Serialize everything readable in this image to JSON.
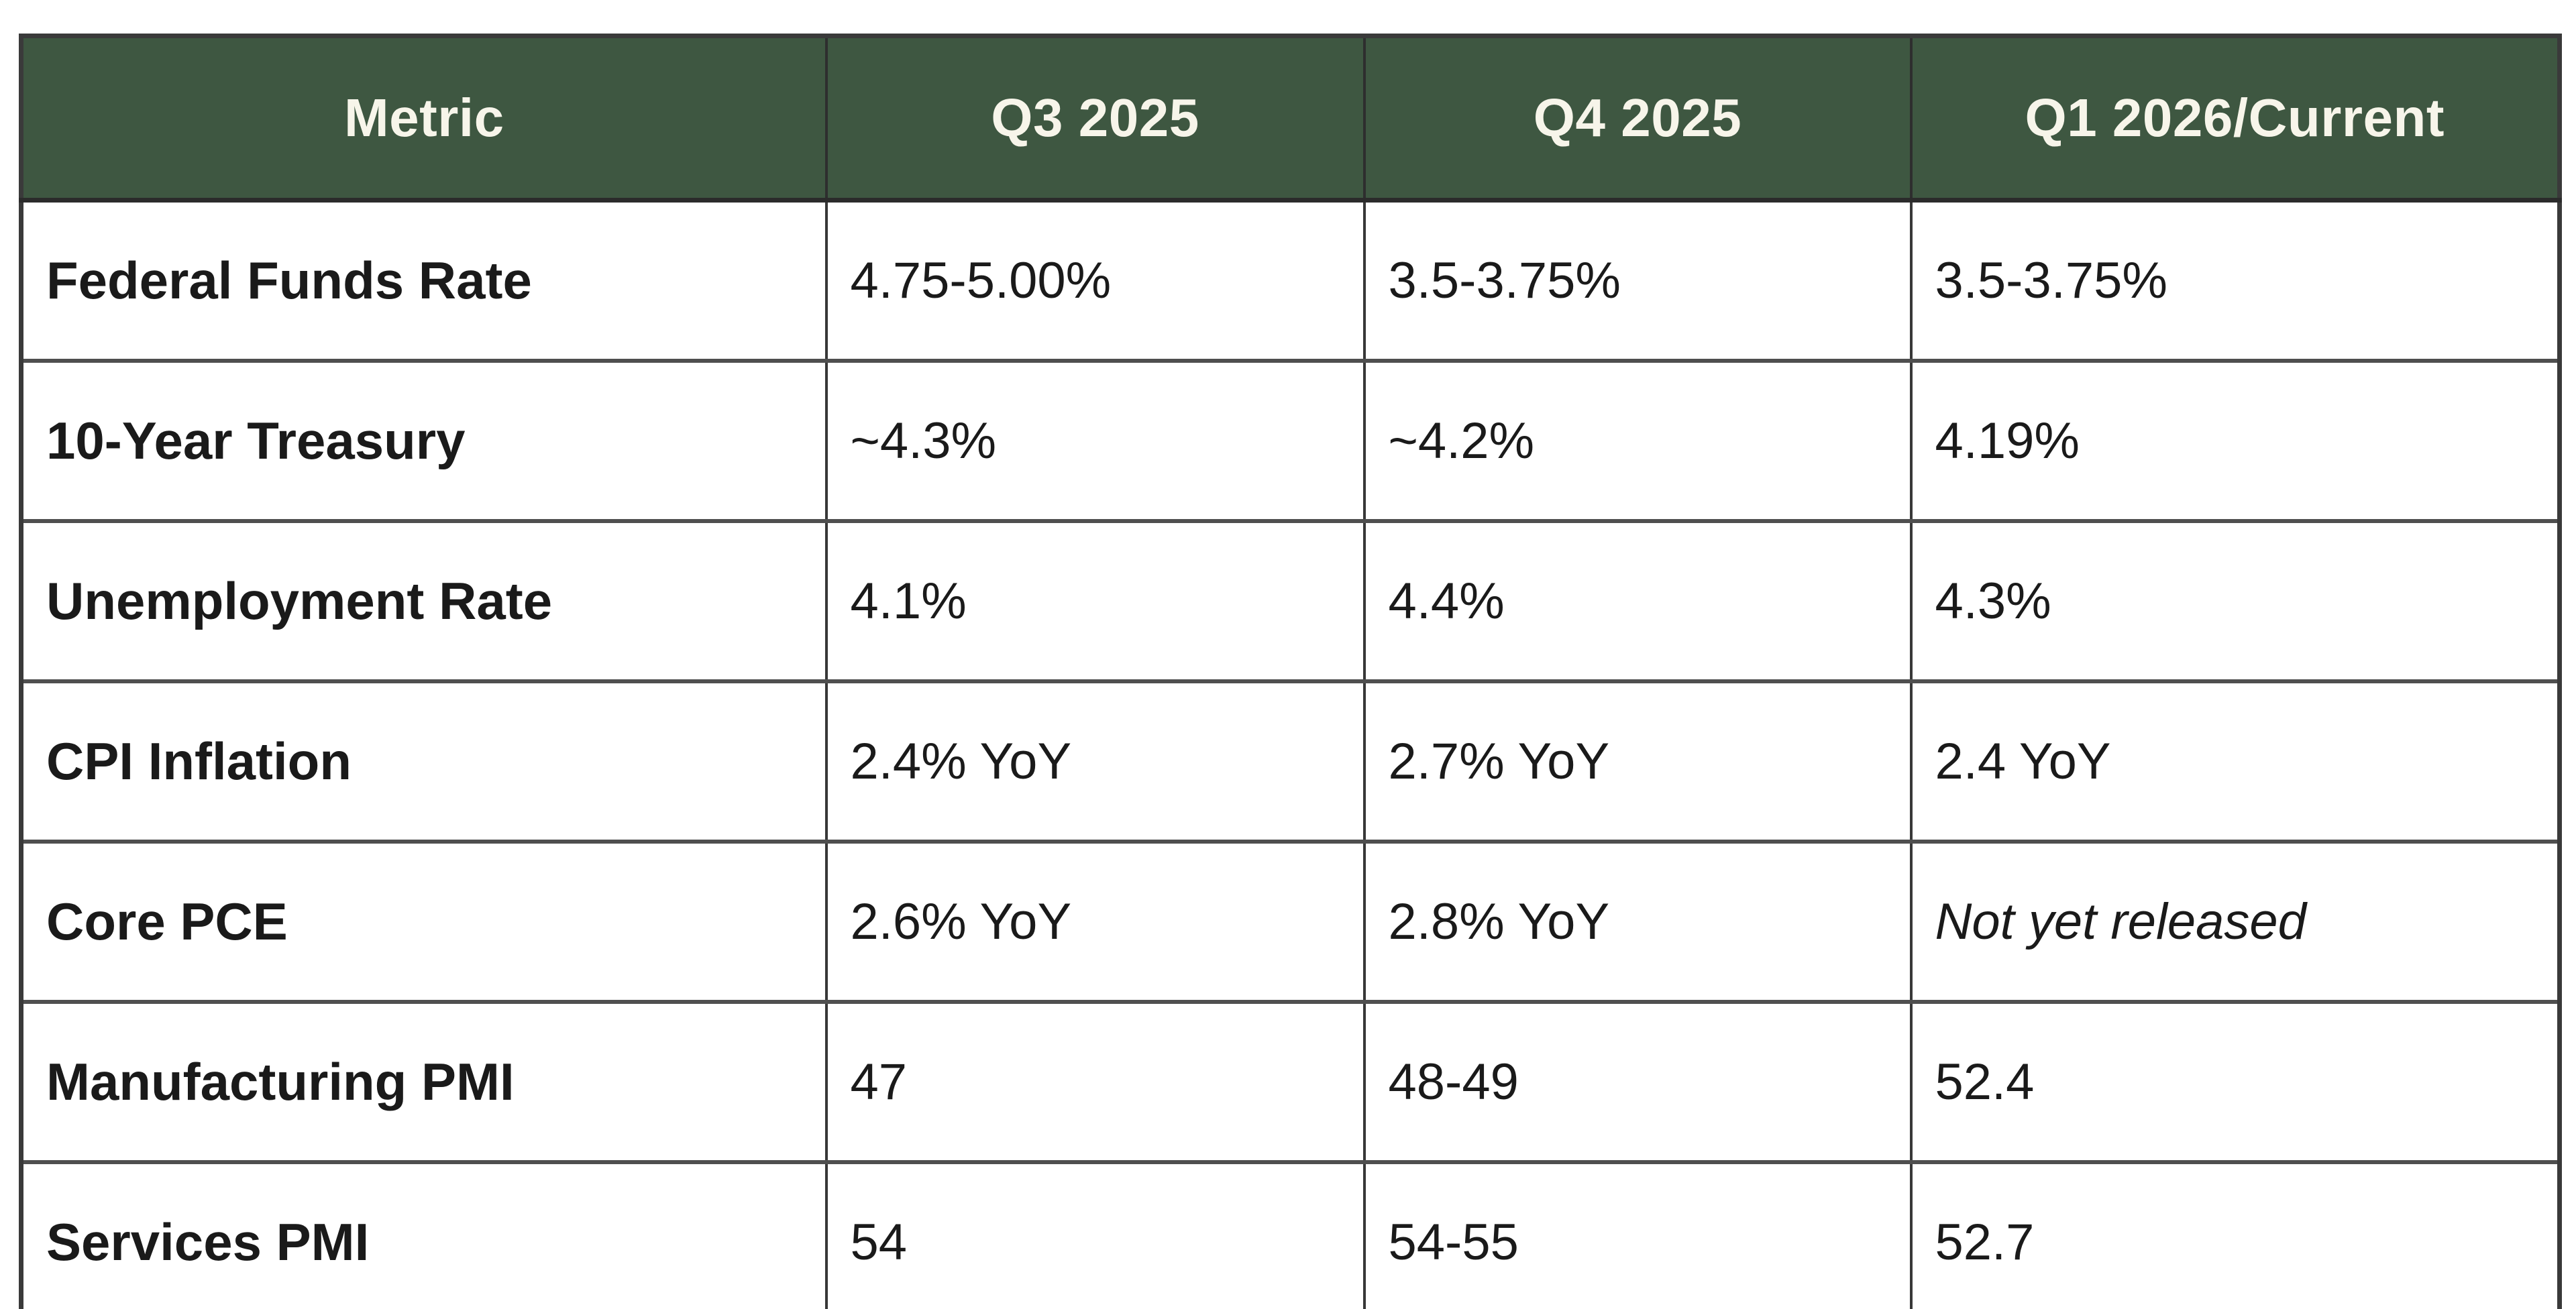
{
  "chart_data": {
    "type": "table",
    "title": "",
    "columns": [
      "Metric",
      "Q3 2025",
      "Q4 2025",
      "Q1 2026/Current"
    ],
    "rows": [
      {
        "metric": "Federal Funds Rate",
        "values": [
          "4.75-5.00%",
          "3.5-3.75%",
          "3.5-3.75%"
        ],
        "italic_value_index": null
      },
      {
        "metric": "10-Year Treasury",
        "values": [
          "~4.3%",
          "~4.2%",
          "4.19%"
        ],
        "italic_value_index": null
      },
      {
        "metric": "Unemployment Rate",
        "values": [
          "4.1%",
          "4.4%",
          "4.3%"
        ],
        "italic_value_index": null
      },
      {
        "metric": "CPI Inflation",
        "values": [
          "2.4% YoY",
          "2.7% YoY",
          "2.4 YoY"
        ],
        "italic_value_index": null
      },
      {
        "metric": "Core PCE",
        "values": [
          "2.6% YoY",
          "2.8% YoY",
          "Not yet released"
        ],
        "italic_value_index": 2
      },
      {
        "metric": "Manufacturing PMI",
        "values": [
          "47",
          "48-49",
          "52.4"
        ],
        "italic_value_index": null
      },
      {
        "metric": "Services PMI",
        "values": [
          "54",
          "54-55",
          "52.7"
        ],
        "italic_value_index": null
      }
    ],
    "layout": {
      "header_row": true,
      "grid": true,
      "header_alignment": "center",
      "body_alignment": "left"
    }
  },
  "colors": {
    "header_bg": "#3E5741",
    "header_text": "#F7F5EA",
    "body_text": "#1A1A1A",
    "border_outer": "#3A3A3A",
    "border_inner": "#383838",
    "row_separator": "#4F4F4F"
  }
}
